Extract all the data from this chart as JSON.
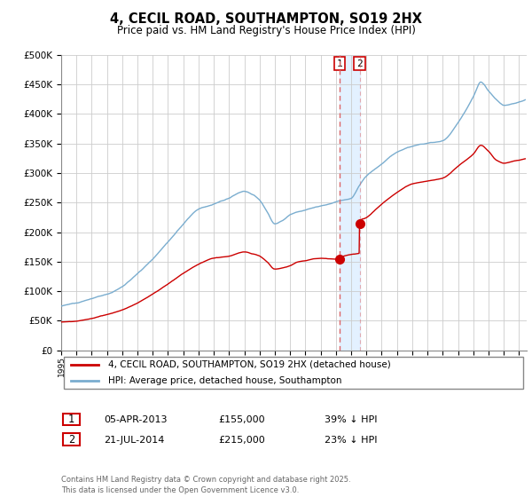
{
  "title": "4, CECIL ROAD, SOUTHAMPTON, SO19 2HX",
  "subtitle": "Price paid vs. HM Land Registry's House Price Index (HPI)",
  "legend_line1": "4, CECIL ROAD, SOUTHAMPTON, SO19 2HX (detached house)",
  "legend_line2": "HPI: Average price, detached house, Southampton",
  "sale1_label": "1",
  "sale1_date": "05-APR-2013",
  "sale1_price": "£155,000",
  "sale1_pct": "39% ↓ HPI",
  "sale1_year": 2013.26,
  "sale1_value": 155000,
  "sale2_label": "2",
  "sale2_date": "21-JUL-2014",
  "sale2_price": "£215,000",
  "sale2_pct": "23% ↓ HPI",
  "sale2_year": 2014.55,
  "sale2_value": 215000,
  "red_color": "#cc0000",
  "blue_color": "#7aadcf",
  "dashed_color": "#dd6666",
  "shade_color": "#ddeeff",
  "background_color": "#ffffff",
  "grid_color": "#cccccc",
  "ylim": [
    0,
    500000
  ],
  "xlim_start": 1995.0,
  "xlim_end": 2025.5,
  "footer": "Contains HM Land Registry data © Crown copyright and database right 2025.\nThis data is licensed under the Open Government Licence v3.0."
}
